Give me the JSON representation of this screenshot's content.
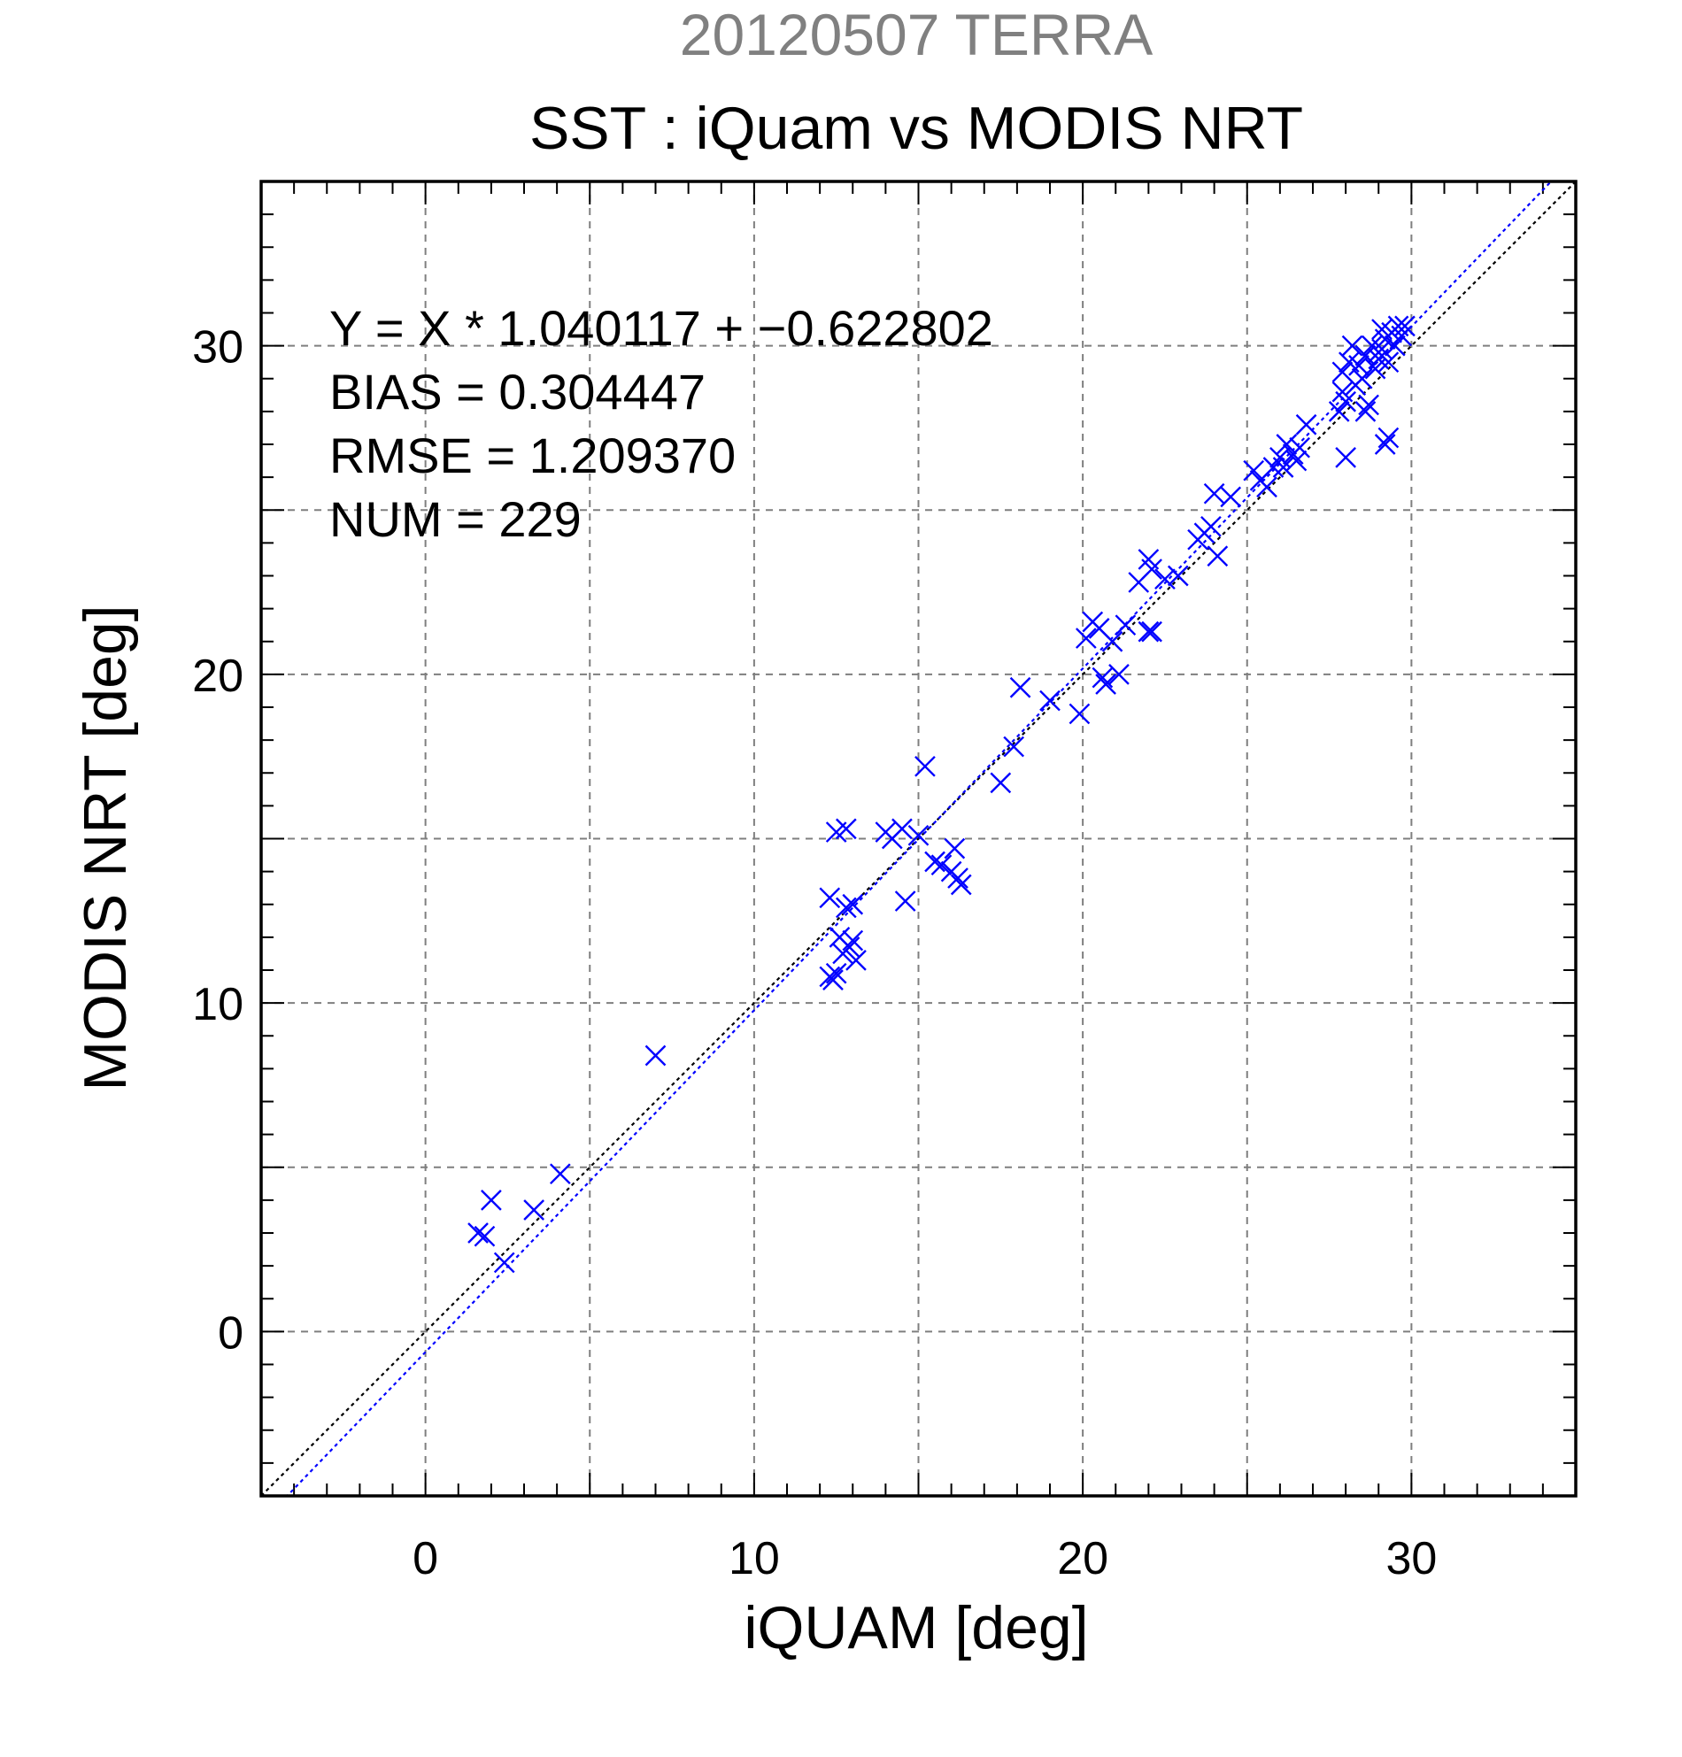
{
  "chart_data": {
    "type": "scatter",
    "supertitle": "20120507 TERRA",
    "title": "SST : iQuam vs MODIS NRT",
    "xlabel": "iQUAM [deg]",
    "ylabel": "MODIS NRT [deg]",
    "xlim": [
      -5,
      35
    ],
    "ylim": [
      -5,
      35
    ],
    "xticks": [
      0,
      10,
      20,
      30
    ],
    "yticks": [
      0,
      10,
      20,
      30
    ],
    "minor_step": 1,
    "grid": true,
    "grid_step": 5,
    "colors": {
      "supertitle": "#808080",
      "points": "#0000ff",
      "fit_line": "#0000ff",
      "identity_line": "#000000",
      "grid": "#7f7f7f"
    },
    "marker": "x",
    "stats": [
      "Y = X * 1.040117 + −0.622802",
      "BIAS = 0.304447",
      "RMSE = 1.209370",
      "NUM = 229"
    ],
    "fit": {
      "slope": 1.040117,
      "intercept": -0.622802
    },
    "identity": {
      "slope": 1,
      "intercept": 0
    },
    "points": [
      [
        1.6,
        3.0
      ],
      [
        1.8,
        2.9
      ],
      [
        2.0,
        4.0
      ],
      [
        2.4,
        2.1
      ],
      [
        3.3,
        3.7
      ],
      [
        4.1,
        4.8
      ],
      [
        7.0,
        8.4
      ],
      [
        12.3,
        10.8
      ],
      [
        12.4,
        10.7
      ],
      [
        12.5,
        10.9
      ],
      [
        12.3,
        13.2
      ],
      [
        12.6,
        12.0
      ],
      [
        12.7,
        11.5
      ],
      [
        12.9,
        11.7
      ],
      [
        12.8,
        12.9
      ],
      [
        13.0,
        13.0
      ],
      [
        13.1,
        11.3
      ],
      [
        12.5,
        15.2
      ],
      [
        12.8,
        15.3
      ],
      [
        13.0,
        11.9
      ],
      [
        14.0,
        15.2
      ],
      [
        14.2,
        15.0
      ],
      [
        14.5,
        15.3
      ],
      [
        14.6,
        13.1
      ],
      [
        15.0,
        15.1
      ],
      [
        15.2,
        17.2
      ],
      [
        15.5,
        14.3
      ],
      [
        15.7,
        14.2
      ],
      [
        16.0,
        14.0
      ],
      [
        16.1,
        14.7
      ],
      [
        16.3,
        13.6
      ],
      [
        16.2,
        13.8
      ],
      [
        17.5,
        16.7
      ],
      [
        17.9,
        17.8
      ],
      [
        18.1,
        19.6
      ],
      [
        19.0,
        19.2
      ],
      [
        19.9,
        18.8
      ],
      [
        20.1,
        21.1
      ],
      [
        20.3,
        21.6
      ],
      [
        20.5,
        21.4
      ],
      [
        20.6,
        19.9
      ],
      [
        20.7,
        19.7
      ],
      [
        20.9,
        21.0
      ],
      [
        21.1,
        20.0
      ],
      [
        21.3,
        21.5
      ],
      [
        22.0,
        21.3
      ],
      [
        22.1,
        21.3
      ],
      [
        21.7,
        22.8
      ],
      [
        22.0,
        23.5
      ],
      [
        22.1,
        23.2
      ],
      [
        22.5,
        22.9
      ],
      [
        22.9,
        23.0
      ],
      [
        23.5,
        24.1
      ],
      [
        23.7,
        24.3
      ],
      [
        23.9,
        24.5
      ],
      [
        24.1,
        23.6
      ],
      [
        24.0,
        25.5
      ],
      [
        24.5,
        25.4
      ],
      [
        25.2,
        26.2
      ],
      [
        25.4,
        25.9
      ],
      [
        25.6,
        25.7
      ],
      [
        25.8,
        26.3
      ],
      [
        26.0,
        26.6
      ],
      [
        26.2,
        27.0
      ],
      [
        26.4,
        26.7
      ],
      [
        26.6,
        26.9
      ],
      [
        26.8,
        27.6
      ],
      [
        26.1,
        26.3
      ],
      [
        26.5,
        26.5
      ],
      [
        27.8,
        28.0
      ],
      [
        28.0,
        28.3
      ],
      [
        27.9,
        29.2
      ],
      [
        28.1,
        29.5
      ],
      [
        28.3,
        28.8
      ],
      [
        28.5,
        29.0
      ],
      [
        28.6,
        29.7
      ],
      [
        28.8,
        30.0
      ],
      [
        28.9,
        29.3
      ],
      [
        29.0,
        29.6
      ],
      [
        29.1,
        29.9
      ],
      [
        29.2,
        30.2
      ],
      [
        29.3,
        29.5
      ],
      [
        29.4,
        30.4
      ],
      [
        29.5,
        30.0
      ],
      [
        29.6,
        30.6
      ],
      [
        29.7,
        30.3
      ],
      [
        29.8,
        30.6
      ],
      [
        28.0,
        26.6
      ],
      [
        29.2,
        27.0
      ],
      [
        29.3,
        27.2
      ],
      [
        28.6,
        28.0
      ],
      [
        28.7,
        28.2
      ],
      [
        29.0,
        29.8
      ],
      [
        29.1,
        30.5
      ],
      [
        27.9,
        28.6
      ],
      [
        28.4,
        29.4
      ],
      [
        28.2,
        30.0
      ]
    ]
  }
}
